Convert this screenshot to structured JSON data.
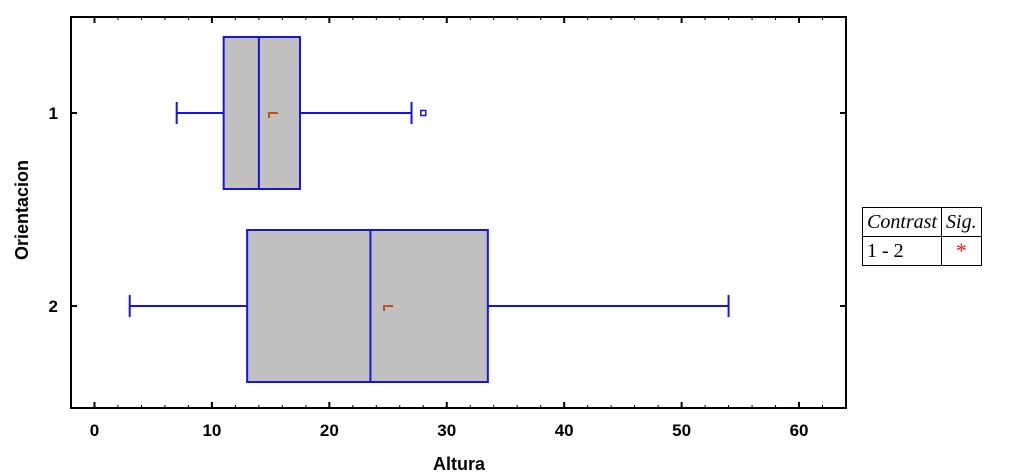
{
  "chart_data": {
    "type": "boxplot",
    "orientation": "horizontal",
    "title": "",
    "xlabel": "Altura",
    "ylabel": "Orientacion",
    "xlim": [
      -2,
      64
    ],
    "xticks": [
      0,
      10,
      20,
      30,
      40,
      50,
      60
    ],
    "xtick_labels": [
      "0",
      "10",
      "20",
      "30",
      "40",
      "50",
      "60"
    ],
    "grid": false,
    "box_fill": "#c0c0c0",
    "line_color": "#1515e0",
    "mean_color": "#b8531b",
    "groups": [
      {
        "label": "1",
        "min": 7,
        "q1": 11,
        "median": 14,
        "q3": 17.5,
        "max": 27,
        "mean": 15.2,
        "outliers": [
          28
        ]
      },
      {
        "label": "2",
        "min": 3,
        "q1": 13,
        "median": 23.5,
        "q3": 33.5,
        "max": 54,
        "mean": 25,
        "outliers": []
      }
    ]
  },
  "contrast_table": {
    "headers": [
      "Contrast",
      "Sig."
    ],
    "rows": [
      {
        "contrast": "1 - 2",
        "sig": "*"
      }
    ]
  }
}
